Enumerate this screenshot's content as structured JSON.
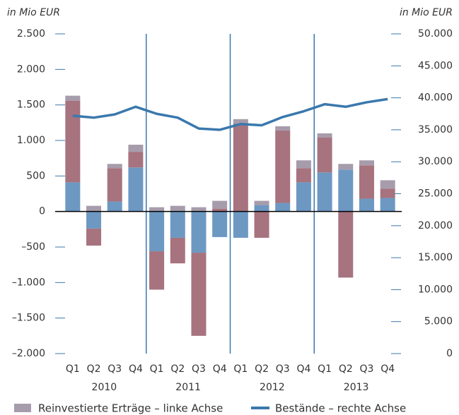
{
  "chart_data": {
    "type": "bar",
    "y_axis_label": "in Mio EUR",
    "y2_axis_label": "in Mio EUR",
    "categories": [
      "Q1",
      "Q2",
      "Q3",
      "Q4",
      "Q1",
      "Q2",
      "Q3",
      "Q4",
      "Q1",
      "Q2",
      "Q3",
      "Q4",
      "Q1",
      "Q2",
      "Q3",
      "Q4"
    ],
    "years": [
      "2010",
      "2011",
      "2012",
      "2013"
    ],
    "series": [
      {
        "color": "#6d98c2",
        "values": [
          410,
          -240,
          140,
          620,
          -560,
          -370,
          -580,
          -360,
          -370,
          90,
          120,
          410,
          550,
          590,
          180,
          190
        ]
      },
      {
        "color": "#a6737f",
        "values": [
          1150,
          -240,
          470,
          220,
          -540,
          -360,
          -1170,
          40,
          1240,
          -370,
          1020,
          200,
          490,
          -930,
          470,
          130
        ]
      },
      {
        "name": "Reinvestierte Erträge – linke Achse",
        "color": "#a79cab",
        "values": [
          70,
          80,
          60,
          100,
          60,
          80,
          60,
          110,
          60,
          60,
          60,
          110,
          60,
          80,
          70,
          120
        ]
      },
      {
        "name": "Bestände – rechte Achse",
        "type": "line",
        "axis": "y2",
        "color": "#3a78ad",
        "values": [
          37200,
          36900,
          37400,
          38600,
          37500,
          36900,
          35200,
          35000,
          35900,
          35700,
          37000,
          37900,
          39000,
          38600,
          39300,
          39800
        ]
      }
    ],
    "ylim": [
      -2000,
      2500
    ],
    "yticks": [
      {
        "value": 2500,
        "label": "2.500"
      },
      {
        "value": 2000,
        "label": "2.000"
      },
      {
        "value": 1500,
        "label": "1.500"
      },
      {
        "value": 1000,
        "label": "1.000"
      },
      500,
      0,
      {
        "value": -500,
        "label": "–500"
      },
      {
        "value": -1000,
        "label": "–1.000"
      },
      {
        "value": -1500,
        "label": "–1.500"
      },
      {
        "value": -2000,
        "label": "–2.000"
      }
    ],
    "y2lim": [
      0,
      50000
    ],
    "y2ticks": [
      {
        "value": 50000,
        "label": "50.000"
      },
      {
        "value": 45000,
        "label": "45.000"
      },
      {
        "value": 40000,
        "label": "40.000"
      },
      {
        "value": 35000,
        "label": "35.000"
      },
      {
        "value": 30000,
        "label": "30.000"
      },
      {
        "value": 25000,
        "label": "25.000"
      },
      {
        "value": 20000,
        "label": "20.000"
      },
      {
        "value": 15000,
        "label": "15.000"
      },
      {
        "value": 10000,
        "label": "10.000"
      },
      {
        "value": 5000,
        "label": "5.000"
      },
      0
    ]
  }
}
